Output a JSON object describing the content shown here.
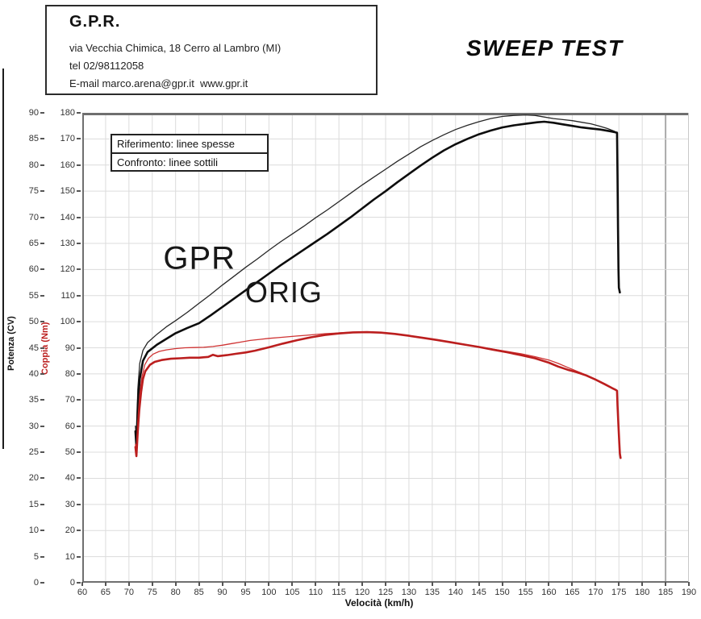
{
  "header": {
    "company": "G.P.R.",
    "address": "via Vecchia Chimica, 18 Cerro al Lambro (MI)",
    "phone": "tel 02/98112058",
    "email_line": "E-mail marco.arena@gpr.it  www.gpr.it"
  },
  "title": "SWEEP TEST",
  "legend": {
    "line1": "Riferimento: linee spesse",
    "line2": "Confronto: linee sottili"
  },
  "colors": {
    "thick_black": "#0d0d0d",
    "thin_black": "#262626",
    "thick_red": "#bb1e1e",
    "thin_red": "#cf3333",
    "grid": "#dcdcdc",
    "grid_major": "#ababab",
    "border": "#6f6f6f"
  },
  "chart_data": {
    "type": "line",
    "xlabel": "Velocità (km/h)",
    "ylabel_power": "Potenza (CV)",
    "ylabel_torque": "Coppia (Nm)",
    "x_range": [
      60,
      190
    ],
    "power_range": [
      0,
      90
    ],
    "torque_range": [
      0,
      180
    ],
    "x_ticks": [
      60,
      65,
      70,
      75,
      80,
      85,
      90,
      95,
      100,
      105,
      110,
      115,
      120,
      125,
      130,
      135,
      140,
      145,
      150,
      155,
      160,
      165,
      170,
      175,
      180,
      185,
      190
    ],
    "x_major_tick": 185,
    "power_ticks": [
      0,
      5,
      10,
      15,
      20,
      25,
      30,
      35,
      40,
      45,
      50,
      55,
      60,
      65,
      70,
      75,
      80,
      85,
      90
    ],
    "torque_ticks": [
      0,
      10,
      20,
      30,
      40,
      50,
      60,
      70,
      80,
      90,
      100,
      110,
      120,
      130,
      140,
      150,
      160,
      170,
      180
    ],
    "grid": true,
    "legend_entries": [
      "Riferimento: linee spesse",
      "Confronto: linee sottili"
    ],
    "annotations": [
      {
        "name": "curve-label-gpr",
        "label": "GPR",
        "x_kmh": 85.1,
        "y_cv": 62.0
      },
      {
        "name": "curve-label-orig",
        "label": "ORIG",
        "x_kmh": 103.2,
        "y_cv": 55.5
      }
    ],
    "series": [
      {
        "name": "power-gpr-thin",
        "axis": "power",
        "color": "#262626",
        "width": 1.3,
        "points": [
          [
            71.4,
            30
          ],
          [
            71.6,
            27
          ],
          [
            71.9,
            37
          ],
          [
            72.3,
            42
          ],
          [
            73,
            44.5
          ],
          [
            74,
            46
          ],
          [
            76,
            47.6
          ],
          [
            78,
            49
          ],
          [
            80,
            50.2
          ],
          [
            82.5,
            51.8
          ],
          [
            85,
            53.5
          ],
          [
            87.5,
            55.2
          ],
          [
            90,
            57
          ],
          [
            92.5,
            58.7
          ],
          [
            95,
            60.4
          ],
          [
            97.5,
            62
          ],
          [
            100,
            63.7
          ],
          [
            102.5,
            65.3
          ],
          [
            105,
            66.8
          ],
          [
            107.5,
            68.3
          ],
          [
            110,
            69.9
          ],
          [
            112.5,
            71.4
          ],
          [
            115,
            73
          ],
          [
            117.5,
            74.6
          ],
          [
            120,
            76.2
          ],
          [
            122.5,
            77.7
          ],
          [
            125,
            79.2
          ],
          [
            127.5,
            80.7
          ],
          [
            130,
            82.1
          ],
          [
            132.5,
            83.5
          ],
          [
            135,
            84.7
          ],
          [
            137.5,
            85.8
          ],
          [
            140,
            86.8
          ],
          [
            142.5,
            87.6
          ],
          [
            145,
            88.3
          ],
          [
            147.5,
            88.9
          ],
          [
            150,
            89.3
          ],
          [
            152.5,
            89.5
          ],
          [
            155,
            89.6
          ],
          [
            157,
            89.5
          ],
          [
            159,
            89.2
          ],
          [
            161,
            88.9
          ],
          [
            163,
            88.7
          ],
          [
            165,
            88.5
          ],
          [
            167,
            88.2
          ],
          [
            169,
            87.9
          ],
          [
            171,
            87.4
          ],
          [
            172.5,
            87
          ],
          [
            174,
            86.5
          ],
          [
            174.5,
            86.2
          ]
        ]
      },
      {
        "name": "power-orig-thick",
        "axis": "power",
        "color": "#0d0d0d",
        "width": 2.6,
        "points": [
          [
            71.4,
            29
          ],
          [
            71.6,
            26
          ],
          [
            71.9,
            34
          ],
          [
            72.3,
            39
          ],
          [
            73,
            42.5
          ],
          [
            74,
            44.2
          ],
          [
            76,
            45.6
          ],
          [
            78,
            46.7
          ],
          [
            80,
            47.8
          ],
          [
            82.5,
            48.8
          ],
          [
            85,
            49.7
          ],
          [
            87.5,
            51.2
          ],
          [
            90,
            52.8
          ],
          [
            92.5,
            54.4
          ],
          [
            95,
            56
          ],
          [
            97.5,
            57.6
          ],
          [
            100,
            59.2
          ],
          [
            102.5,
            60.8
          ],
          [
            105,
            62.3
          ],
          [
            107.5,
            63.8
          ],
          [
            110,
            65.3
          ],
          [
            112.5,
            66.8
          ],
          [
            115,
            68.4
          ],
          [
            117.5,
            70
          ],
          [
            120,
            71.7
          ],
          [
            122.5,
            73.4
          ],
          [
            125,
            75
          ],
          [
            127.5,
            76.7
          ],
          [
            130,
            78.3
          ],
          [
            132.5,
            79.9
          ],
          [
            135,
            81.4
          ],
          [
            137.5,
            82.8
          ],
          [
            140,
            84
          ],
          [
            142.5,
            85
          ],
          [
            145,
            85.9
          ],
          [
            147.5,
            86.6
          ],
          [
            150,
            87.2
          ],
          [
            152.5,
            87.6
          ],
          [
            155,
            87.9
          ],
          [
            157.5,
            88.2
          ],
          [
            159,
            88.3
          ],
          [
            161,
            88.1
          ],
          [
            163,
            87.8
          ],
          [
            165,
            87.5
          ],
          [
            167,
            87.2
          ],
          [
            169,
            87
          ],
          [
            171,
            86.8
          ],
          [
            173,
            86.5
          ],
          [
            174.6,
            86.2
          ],
          [
            174.7,
            78
          ],
          [
            174.8,
            68
          ],
          [
            174.9,
            60
          ],
          [
            175,
            56.5
          ],
          [
            175.2,
            55.6
          ]
        ]
      },
      {
        "name": "torque-gpr-thin",
        "axis": "torque",
        "color": "#cf3333",
        "width": 1.3,
        "points": [
          [
            71.4,
            53
          ],
          [
            71.6,
            50
          ],
          [
            71.9,
            62
          ],
          [
            72.3,
            72
          ],
          [
            72.8,
            79
          ],
          [
            73.4,
            83.5
          ],
          [
            74.2,
            86
          ],
          [
            75.2,
            87.6
          ],
          [
            76.5,
            88.6
          ],
          [
            78,
            89.2
          ],
          [
            80,
            89.7
          ],
          [
            82,
            90
          ],
          [
            84,
            90.1
          ],
          [
            86,
            90.2
          ],
          [
            88,
            90.5
          ],
          [
            90,
            91
          ],
          [
            92,
            91.6
          ],
          [
            94,
            92.2
          ],
          [
            96,
            92.8
          ],
          [
            98,
            93.2
          ],
          [
            100,
            93.6
          ],
          [
            102,
            93.9
          ],
          [
            104,
            94.2
          ],
          [
            106,
            94.5
          ],
          [
            108,
            94.8
          ],
          [
            110,
            95.1
          ],
          [
            112,
            95.4
          ],
          [
            114,
            95.6
          ],
          [
            116,
            95.8
          ],
          [
            118,
            95.9
          ],
          [
            121,
            96
          ],
          [
            124,
            95.9
          ],
          [
            127,
            95.4
          ],
          [
            130,
            94.7
          ],
          [
            133,
            93.9
          ],
          [
            136,
            93.1
          ],
          [
            139,
            92.2
          ],
          [
            142,
            91.3
          ],
          [
            145,
            90.4
          ],
          [
            148,
            89.5
          ],
          [
            151,
            88.6
          ],
          [
            154,
            87.7
          ],
          [
            157,
            86.6
          ],
          [
            160,
            85.3
          ],
          [
            162,
            84
          ],
          [
            164,
            82.5
          ],
          [
            166,
            81
          ],
          [
            168,
            79.6
          ],
          [
            170,
            78
          ],
          [
            172,
            76.2
          ],
          [
            173.5,
            74.7
          ],
          [
            174.5,
            73.8
          ]
        ]
      },
      {
        "name": "torque-orig-thick",
        "axis": "torque",
        "color": "#bb1e1e",
        "width": 2.6,
        "points": [
          [
            71.4,
            52
          ],
          [
            71.6,
            48.5
          ],
          [
            71.9,
            58
          ],
          [
            72.2,
            66
          ],
          [
            72.6,
            73
          ],
          [
            73,
            78
          ],
          [
            73.5,
            81
          ],
          [
            74.5,
            83.5
          ],
          [
            75.5,
            84.6
          ],
          [
            77,
            85.3
          ],
          [
            79,
            85.8
          ],
          [
            81,
            86
          ],
          [
            83,
            86.2
          ],
          [
            85,
            86.2
          ],
          [
            87,
            86.5
          ],
          [
            88,
            87.3
          ],
          [
            89,
            86.8
          ],
          [
            91,
            87.2
          ],
          [
            93,
            87.7
          ],
          [
            95,
            88.2
          ],
          [
            97,
            88.9
          ],
          [
            100,
            90.2
          ],
          [
            103,
            91.6
          ],
          [
            106,
            92.9
          ],
          [
            109,
            94
          ],
          [
            112,
            94.9
          ],
          [
            115,
            95.5
          ],
          [
            118,
            95.9
          ],
          [
            121,
            96
          ],
          [
            124,
            95.8
          ],
          [
            127,
            95.3
          ],
          [
            130,
            94.6
          ],
          [
            133,
            93.8
          ],
          [
            136,
            93
          ],
          [
            139,
            92.1
          ],
          [
            142,
            91.2
          ],
          [
            145,
            90.3
          ],
          [
            148,
            89.3
          ],
          [
            151,
            88.3
          ],
          [
            154,
            87.2
          ],
          [
            157,
            86
          ],
          [
            160,
            84.3
          ],
          [
            162,
            82.8
          ],
          [
            164,
            81.6
          ],
          [
            166,
            80.6
          ],
          [
            168,
            79.4
          ],
          [
            170,
            77.8
          ],
          [
            172,
            76
          ],
          [
            173.5,
            74.6
          ],
          [
            174.4,
            73.8
          ],
          [
            174.6,
            73.5
          ],
          [
            174.7,
            68
          ],
          [
            174.9,
            60
          ],
          [
            175.1,
            53
          ],
          [
            175.2,
            49.5
          ],
          [
            175.35,
            47.8
          ]
        ]
      }
    ]
  }
}
